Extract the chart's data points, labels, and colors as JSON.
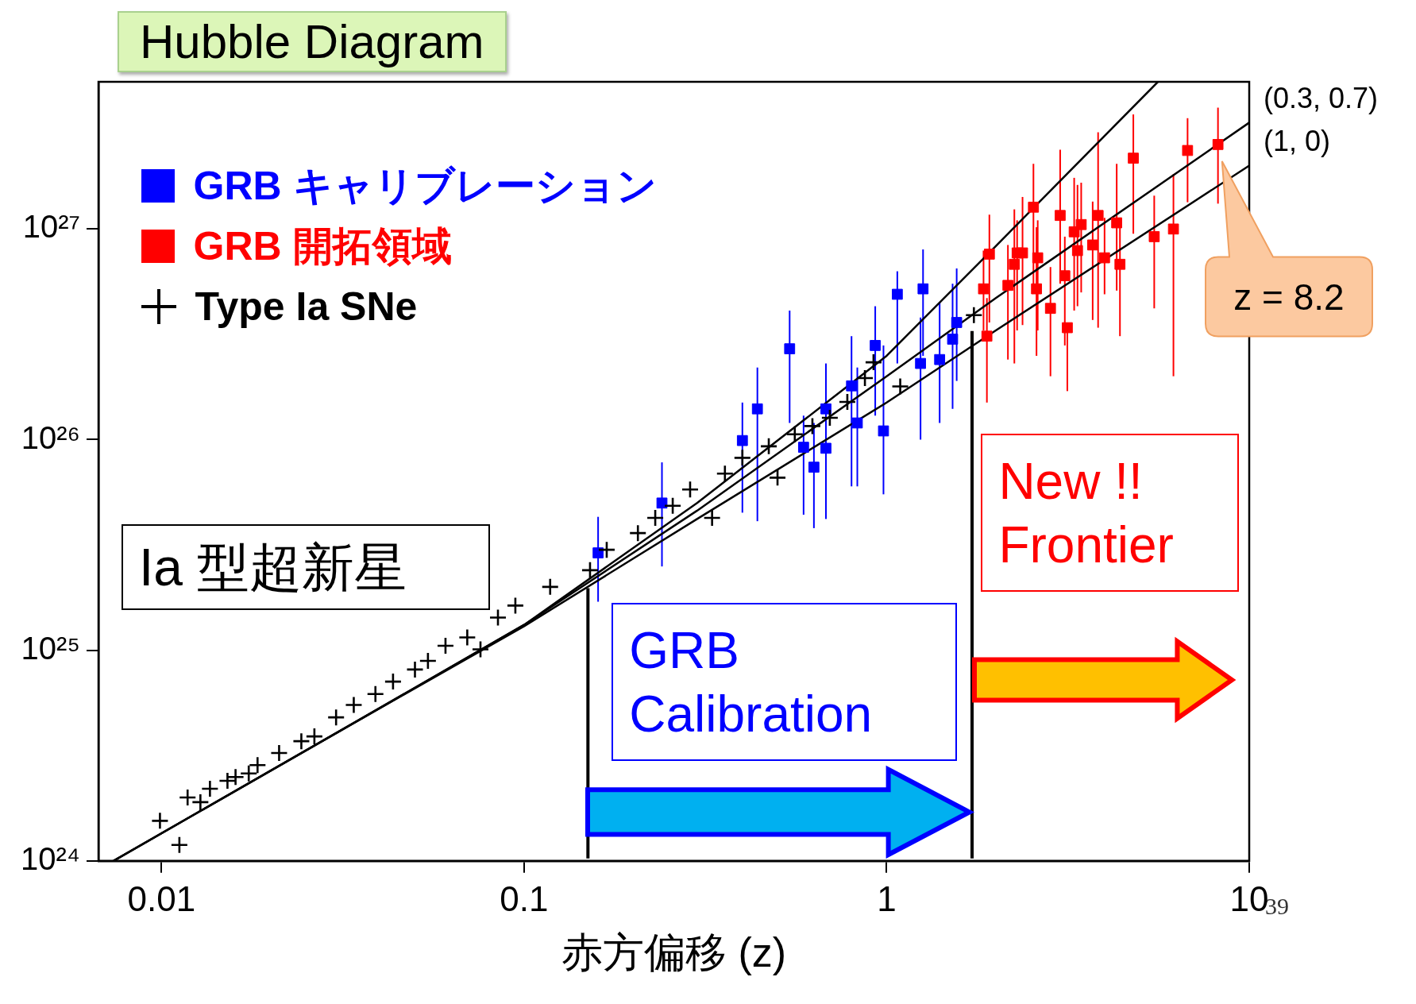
{
  "chart_data": {
    "type": "scatter",
    "title": "Hubble Diagram",
    "xlabel": "赤方偏移 (z)",
    "log": "xy",
    "xlim": [
      0.0067,
      10
    ],
    "ylim": [
      1e+24,
      5e+27
    ],
    "xticks": [
      0.01,
      0.1,
      1,
      10
    ],
    "yticks": [
      {
        "value": 1e+24,
        "label": "10²⁴"
      },
      {
        "value": 1e+25,
        "label": "10²⁵"
      },
      {
        "value": 1e+26,
        "label": "10²⁶"
      },
      {
        "value": 1e+27,
        "label": "10²⁷"
      }
    ],
    "legend": "top left",
    "series": [
      {
        "name": "GRB キャリブレーション",
        "color": "#0000ff",
        "marker": "square",
        "x": [
          0.16,
          0.24,
          0.4,
          0.44,
          0.54,
          0.59,
          0.63,
          0.68,
          0.68,
          0.8,
          0.83,
          0.93,
          0.98,
          1.07,
          1.26,
          1.24,
          1.4,
          1.52,
          1.56
        ],
        "values": [
          2.9e+25,
          5e+25,
          9.9e+25,
          1.4e+26,
          2.7e+26,
          9.2e+25,
          7.4e+25,
          9.1e+25,
          1.4e+26,
          1.8e+26,
          1.2e+26,
          2.8e+26,
          1.1e+26,
          4.9e+26,
          5.2e+26,
          2.3e+26,
          2.4e+26,
          3e+26,
          3.6e+26
        ],
        "errors": [
          [
            1.7e+25,
            4.3e+25
          ],
          [
            2.5e+25,
            7.8e+25
          ],
          [
            4.5e+25,
            1.5e+26
          ],
          [
            4.1e+25,
            2.2e+26
          ],
          [
            1.2e+26,
            4.1e+26
          ],
          [
            4.4e+25,
            1.3e+26
          ],
          [
            3.8e+25,
            1.2e+26
          ],
          [
            4.2e+25,
            2.3e+26
          ],
          null,
          [
            6e+25,
            3.1e+26
          ],
          [
            6e+25,
            2.2e+26
          ],
          [
            1.3e+26,
            4.3e+26
          ],
          [
            5.5e+25,
            2.8e+26
          ],
          [
            2.3e+26,
            6.3e+26
          ],
          [
            2.5e+26,
            8e+26
          ],
          [
            1e+26,
            3.8e+26
          ],
          [
            1.2e+26,
            4.5e+26
          ],
          [
            1.4e+26,
            5.5e+26
          ],
          [
            1.9e+26,
            6.5e+26
          ]
        ]
      },
      {
        "name": "GRB 開拓領域",
        "color": "#ff0000",
        "marker": "square",
        "x": [
          1.85,
          1.89,
          1.92,
          2.16,
          2.25,
          2.29,
          2.37,
          2.54,
          2.59,
          2.61,
          2.83,
          3.01,
          3.1,
          3.15,
          3.29,
          3.36,
          3.44,
          3.7,
          3.83,
          3.99,
          4.31,
          4.4,
          4.79,
          5.47,
          6.18,
          6.76,
          8.2
        ],
        "values": [
          5.2e+26,
          3.1e+26,
          7.6e+26,
          5.4e+26,
          6.8e+26,
          7.7e+26,
          7.7e+26,
          1.27e+27,
          5.2e+26,
          7.3e+26,
          4.2e+26,
          1.16e+27,
          6e+26,
          3.4e+26,
          9.7e+26,
          7.9e+26,
          1.05e+27,
          8.4e+26,
          1.16e+27,
          7.3e+26,
          1.07e+27,
          6.8e+26,
          2.17e+27,
          9.2e+26,
          1e+27,
          2.36e+27,
          2.52e+27
        ],
        "errors": [
          [
            3.3e+26,
            7.9e+26
          ],
          [
            1.5e+26,
            4.7e+26
          ],
          [
            3.6e+26,
            1.17e+27
          ],
          [
            2.4e+26,
            8.4e+26
          ],
          [
            2.3e+26,
            1.24e+27
          ],
          [
            3.3e+26,
            1.1e+27
          ],
          [
            3.5e+26,
            1.42e+27
          ],
          [
            5.4e+26,
            2.04e+27
          ],
          [
            2.5e+26,
            1.02e+27
          ],
          [
            3.3e+26,
            1.1e+27
          ],
          [
            2e+26,
            6.6e+26
          ],
          [
            5.5e+26,
            2.38e+27
          ],
          [
            2.8e+26,
            9.2e+26
          ],
          [
            1.7e+26,
            3.4e+26
          ],
          [
            4.1e+26,
            1.75e+27
          ],
          [
            4.3e+26,
            1.62e+27
          ],
          [
            5e+26,
            1.66e+27
          ],
          [
            3.7e+26,
            1.35e+27
          ],
          [
            3.4e+26,
            2.88e+27
          ],
          [
            4.9e+26,
            1.13e+27
          ],
          [
            5.1e+26,
            2.04e+27
          ],
          [
            3.1e+26,
            1.13e+27
          ],
          [
            9.5e+26,
            3.5e+27
          ],
          [
            4.2e+26,
            1.44e+27
          ],
          [
            2e+26,
            1.82e+27
          ],
          [
            1.34e+27,
            3.36e+27
          ],
          [
            1.32e+27,
            3.77e+27
          ]
        ]
      },
      {
        "name": "Type Ia SNe",
        "color": "#000000",
        "marker": "cross",
        "x": [
          0.0099,
          0.0112,
          0.0118,
          0.0128,
          0.0136,
          0.0152,
          0.016,
          0.0174,
          0.0184,
          0.0211,
          0.0243,
          0.0264,
          0.0303,
          0.0339,
          0.0389,
          0.0435,
          0.05,
          0.0543,
          0.0607,
          0.0697,
          0.0758,
          0.0847,
          0.0946,
          0.118,
          0.152,
          0.169,
          0.206,
          0.23,
          0.257,
          0.287,
          0.33,
          0.358,
          0.4,
          0.473,
          0.5,
          0.558,
          0.624,
          0.697,
          0.779,
          0.871,
          0.92,
          1.09,
          1.74
        ],
        "values": [
          1.55e+24,
          1.19e+24,
          2e+24,
          1.9e+24,
          2.2e+24,
          2.4e+24,
          2.5e+24,
          2.6e+24,
          2.85e+24,
          3.25e+24,
          3.7e+24,
          3.9e+24,
          4.8e+24,
          5.5e+24,
          6.2e+24,
          7.1e+24,
          8.1e+24,
          8.9e+24,
          1.05e+25,
          1.15e+25,
          1.01e+25,
          1.43e+25,
          1.63e+25,
          2e+25,
          2.4e+25,
          3e+25,
          3.6e+25,
          4.25e+25,
          4.85e+25,
          5.8e+25,
          4.25e+25,
          6.9e+25,
          8.2e+25,
          9.3e+25,
          6.6e+25,
          1.06e+26,
          1.16e+26,
          1.27e+26,
          1.51e+26,
          1.96e+26,
          2.33e+26,
          1.79e+26,
          3.9e+26
        ]
      },
      {
        "type": "line",
        "color": "#000000",
        "x": [
          0.00737,
          0.03,
          0.1,
          0.3,
          1,
          2,
          5.6
        ],
        "values": [
          1e+24,
          4e+24,
          1.32e+25,
          5e+25,
          2.5e+26,
          8.3e+26,
          5e+27
        ]
      },
      {
        "type": "line",
        "name": "(0.3, 0.7)",
        "color": "#000000",
        "x": [
          0.00737,
          0.03,
          0.1,
          0.3,
          1,
          2,
          10
        ],
        "values": [
          1e+24,
          4e+24,
          1.32e+25,
          4.6e+25,
          2e+26,
          4.7e+26,
          3.2e+27
        ]
      },
      {
        "type": "line",
        "name": "(1, 0)",
        "color": "#000000",
        "x": [
          0.00737,
          0.03,
          0.1,
          0.3,
          1,
          2,
          10
        ],
        "values": [
          1e+24,
          4e+24,
          1.3e+25,
          4.2e+25,
          1.5e+26,
          3.3e+26,
          2e+27
        ]
      }
    ],
    "ref_lines": [
      {
        "axis": "x",
        "value": 0.15,
        "color": "#000000"
      },
      {
        "axis": "x",
        "value": 1.72,
        "color": "#000000"
      }
    ],
    "annotations": [
      "Ia 型超新星",
      "GRB Calibration",
      "New !! Frontier",
      "z = 8.2",
      "39"
    ]
  }
}
